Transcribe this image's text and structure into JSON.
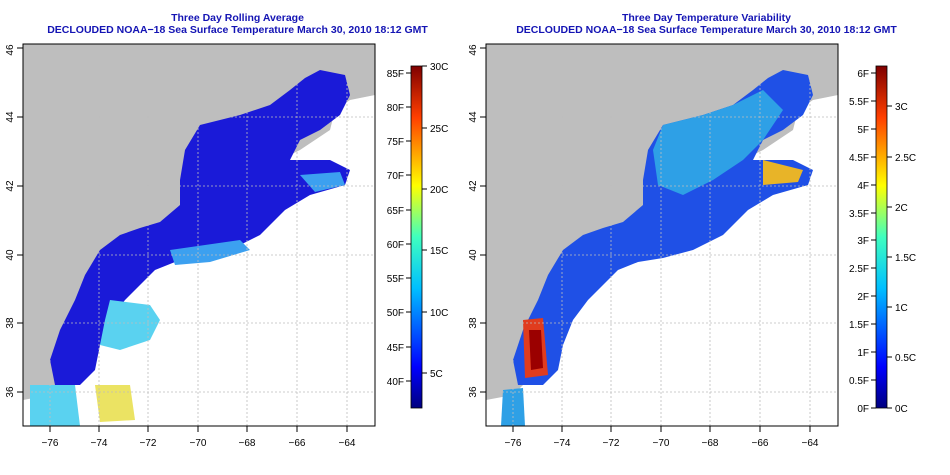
{
  "left_panel": {
    "title": "Three Day Rolling Average",
    "subtitle": "DECLOUDED NOAA−18 Sea Surface Temperature March 30, 2010 18:12 GMT",
    "colorbar_left_labels": [
      "40F",
      "45F",
      "50F",
      "55F",
      "60F",
      "65F",
      "70F",
      "75F",
      "80F",
      "85F"
    ],
    "colorbar_right_labels": [
      "5C",
      "10C",
      "15C",
      "20C",
      "25C",
      "30C"
    ]
  },
  "right_panel": {
    "title": "Three Day Temperature Variability",
    "subtitle": "DECLOUDED NOAA−18 Sea Surface Temperature March 30, 2010 18:12 GMT",
    "colorbar_left_labels": [
      "0F",
      "0.5F",
      "1F",
      "1.5F",
      "2F",
      "2.5F",
      "3F",
      "3.5F",
      "4F",
      "4.5F",
      "5F",
      "5.5F",
      "6F"
    ],
    "colorbar_right_labels": [
      "0C",
      "0.5C",
      "1C",
      "1.5C",
      "2C",
      "2.5C",
      "3C"
    ]
  },
  "axes": {
    "lon_labels": [
      "−76",
      "−74",
      "−72",
      "−70",
      "−68",
      "−66",
      "−64"
    ],
    "lat_labels": [
      "36",
      "38",
      "40",
      "42",
      "44",
      "46"
    ]
  },
  "colors": {
    "title": "#1414b4",
    "land": "#bebebe",
    "grid": "#bdbdbd",
    "sst_cold": "#1a1ad8",
    "sst_warm": "#3cc8f0"
  }
}
